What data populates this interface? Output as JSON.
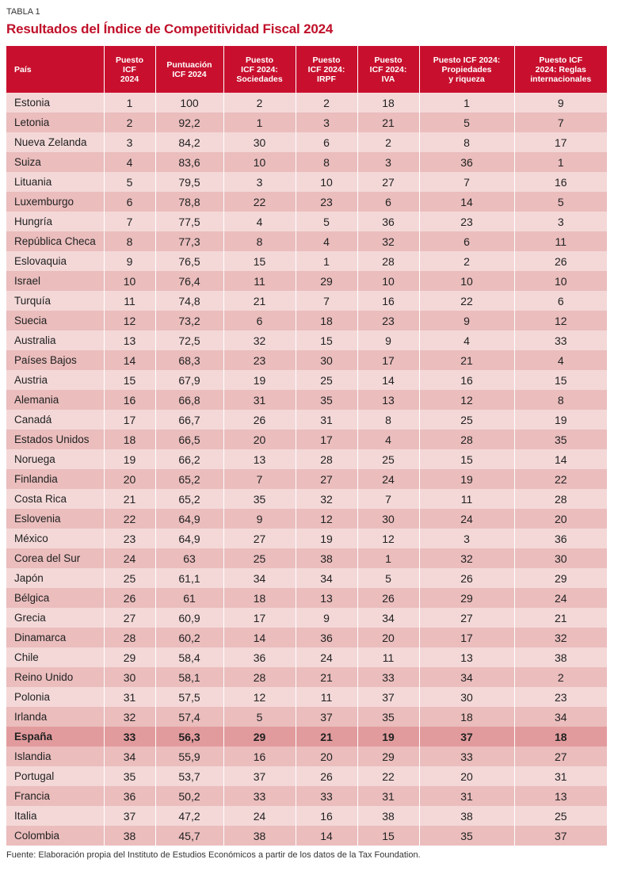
{
  "label": "TABLA 1",
  "title": "Resultados del Índice de Competitividad Fiscal 2024",
  "table": {
    "headers": [
      [
        "País"
      ],
      [
        "Puesto",
        "ICF",
        "2024"
      ],
      [
        "Puntuación",
        "ICF 2024"
      ],
      [
        "Puesto",
        "ICF 2024:",
        "Sociedades"
      ],
      [
        "Puesto",
        "ICF 2024:",
        "IRPF"
      ],
      [
        "Puesto",
        "ICF 2024:",
        "IVA"
      ],
      [
        "Puesto ICF 2024:",
        "Propiedades",
        "y riqueza"
      ],
      [
        "Puesto ICF",
        "2024: Reglas",
        "internacionales"
      ]
    ],
    "rows": [
      [
        "Estonia",
        "1",
        "100",
        "2",
        "2",
        "18",
        "1",
        "9"
      ],
      [
        "Letonia",
        "2",
        "92,2",
        "1",
        "3",
        "21",
        "5",
        "7"
      ],
      [
        "Nueva Zelanda",
        "3",
        "84,2",
        "30",
        "6",
        "2",
        "8",
        "17"
      ],
      [
        "Suiza",
        "4",
        "83,6",
        "10",
        "8",
        "3",
        "36",
        "1"
      ],
      [
        "Lituania",
        "5",
        "79,5",
        "3",
        "10",
        "27",
        "7",
        "16"
      ],
      [
        "Luxemburgo",
        "6",
        "78,8",
        "22",
        "23",
        "6",
        "14",
        "5"
      ],
      [
        "Hungría",
        "7",
        "77,5",
        "4",
        "5",
        "36",
        "23",
        "3"
      ],
      [
        "República Checa",
        "8",
        "77,3",
        "8",
        "4",
        "32",
        "6",
        "11"
      ],
      [
        "Eslovaquia",
        "9",
        "76,5",
        "15",
        "1",
        "28",
        "2",
        "26"
      ],
      [
        "Israel",
        "10",
        "76,4",
        "11",
        "29",
        "10",
        "10",
        "10"
      ],
      [
        "Turquía",
        "11",
        "74,8",
        "21",
        "7",
        "16",
        "22",
        "6"
      ],
      [
        "Suecia",
        "12",
        "73,2",
        "6",
        "18",
        "23",
        "9",
        "12"
      ],
      [
        "Australia",
        "13",
        "72,5",
        "32",
        "15",
        "9",
        "4",
        "33"
      ],
      [
        "Países Bajos",
        "14",
        "68,3",
        "23",
        "30",
        "17",
        "21",
        "4"
      ],
      [
        "Austria",
        "15",
        "67,9",
        "19",
        "25",
        "14",
        "16",
        "15"
      ],
      [
        "Alemania",
        "16",
        "66,8",
        "31",
        "35",
        "13",
        "12",
        "8"
      ],
      [
        "Canadá",
        "17",
        "66,7",
        "26",
        "31",
        "8",
        "25",
        "19"
      ],
      [
        "Estados Unidos",
        "18",
        "66,5",
        "20",
        "17",
        "4",
        "28",
        "35"
      ],
      [
        "Noruega",
        "19",
        "66,2",
        "13",
        "28",
        "25",
        "15",
        "14"
      ],
      [
        "Finlandia",
        "20",
        "65,2",
        "7",
        "27",
        "24",
        "19",
        "22"
      ],
      [
        "Costa Rica",
        "21",
        "65,2",
        "35",
        "32",
        "7",
        "11",
        "28"
      ],
      [
        "Eslovenia",
        "22",
        "64,9",
        "9",
        "12",
        "30",
        "24",
        "20"
      ],
      [
        "México",
        "23",
        "64,9",
        "27",
        "19",
        "12",
        "3",
        "36"
      ],
      [
        "Corea del Sur",
        "24",
        "63",
        "25",
        "38",
        "1",
        "32",
        "30"
      ],
      [
        "Japón",
        "25",
        "61,1",
        "34",
        "34",
        "5",
        "26",
        "29"
      ],
      [
        "Bélgica",
        "26",
        "61",
        "18",
        "13",
        "26",
        "29",
        "24"
      ],
      [
        "Grecia",
        "27",
        "60,9",
        "17",
        "9",
        "34",
        "27",
        "21"
      ],
      [
        "Dinamarca",
        "28",
        "60,2",
        "14",
        "36",
        "20",
        "17",
        "32"
      ],
      [
        "Chile",
        "29",
        "58,4",
        "36",
        "24",
        "11",
        "13",
        "38"
      ],
      [
        "Reino Unido",
        "30",
        "58,1",
        "28",
        "21",
        "33",
        "34",
        "2"
      ],
      [
        "Polonia",
        "31",
        "57,5",
        "12",
        "11",
        "37",
        "30",
        "23"
      ],
      [
        "Irlanda",
        "32",
        "57,4",
        "5",
        "37",
        "35",
        "18",
        "34"
      ],
      [
        "España",
        "33",
        "56,3",
        "29",
        "21",
        "19",
        "37",
        "18"
      ],
      [
        "Islandia",
        "34",
        "55,9",
        "16",
        "20",
        "29",
        "33",
        "27"
      ],
      [
        "Portugal",
        "35",
        "53,7",
        "37",
        "26",
        "22",
        "20",
        "31"
      ],
      [
        "Francia",
        "36",
        "50,2",
        "33",
        "33",
        "31",
        "31",
        "13"
      ],
      [
        "Italia",
        "37",
        "47,2",
        "24",
        "16",
        "38",
        "38",
        "25"
      ],
      [
        "Colombia",
        "38",
        "45,7",
        "38",
        "14",
        "15",
        "35",
        "37"
      ]
    ]
  },
  "source": "Fuente: Elaboración propia del Instituto de Estudios Económicos a partir de los datos de la Tax Foundation."
}
